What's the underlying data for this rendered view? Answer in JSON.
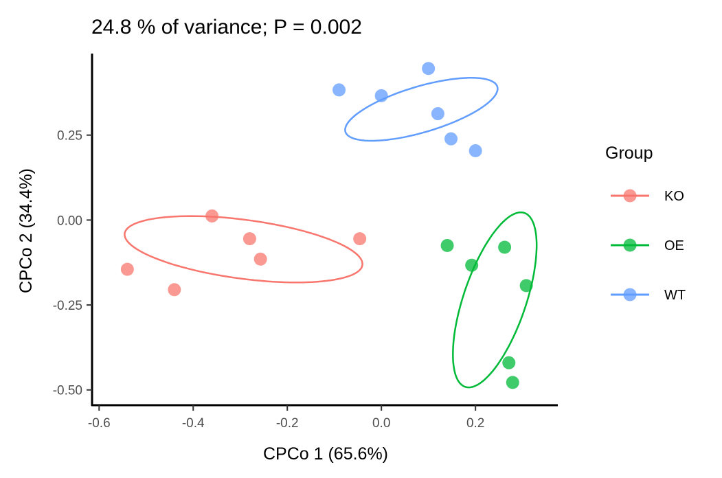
{
  "chart_data": {
    "type": "scatter",
    "title": "24.8 % of variance; P = 0.002",
    "xlabel": "CPCo 1 (65.6%)",
    "ylabel": "CPCo 2 (34.4%)",
    "xlim": [
      -0.615,
      0.375
    ],
    "ylim": [
      -0.545,
      0.49
    ],
    "x_ticks": [
      {
        "value": -0.6,
        "label": "-0.6"
      },
      {
        "value": -0.4,
        "label": "-0.4"
      },
      {
        "value": -0.2,
        "label": "-0.2"
      },
      {
        "value": 0.0,
        "label": "0.0"
      },
      {
        "value": 0.2,
        "label": "0.2"
      }
    ],
    "y_ticks": [
      {
        "value": 0.25,
        "label": "0.25"
      },
      {
        "value": 0.0,
        "label": "0.00"
      },
      {
        "value": -0.25,
        "label": "-0.25"
      },
      {
        "value": -0.5,
        "label": "-0.50"
      }
    ],
    "grid": false,
    "legend": {
      "title": "Group",
      "position": "right"
    },
    "series": [
      {
        "name": "KO",
        "color": "#F8766D",
        "points": [
          {
            "x": -0.54,
            "y": -0.145
          },
          {
            "x": -0.44,
            "y": -0.205
          },
          {
            "x": -0.36,
            "y": 0.012
          },
          {
            "x": -0.28,
            "y": -0.055
          },
          {
            "x": -0.257,
            "y": -0.115
          },
          {
            "x": -0.046,
            "y": -0.055
          }
        ],
        "ellipse": {
          "cx": -0.293,
          "cy": -0.086,
          "rx": 0.257,
          "ry": 0.086,
          "angle_deg": -11
        }
      },
      {
        "name": "OE",
        "color": "#00BA38",
        "points": [
          {
            "x": 0.14,
            "y": -0.075
          },
          {
            "x": 0.192,
            "y": -0.133
          },
          {
            "x": 0.262,
            "y": -0.08
          },
          {
            "x": 0.308,
            "y": -0.193
          },
          {
            "x": 0.271,
            "y": -0.42
          },
          {
            "x": 0.279,
            "y": -0.478
          }
        ],
        "ellipse": {
          "cx": 0.241,
          "cy": -0.235,
          "rx": 0.068,
          "ry": 0.264,
          "angle_deg": -13
        }
      },
      {
        "name": "WT",
        "color": "#619CFF",
        "points": [
          {
            "x": -0.09,
            "y": 0.383
          },
          {
            "x": 0.0,
            "y": 0.366
          },
          {
            "x": 0.1,
            "y": 0.446
          },
          {
            "x": 0.12,
            "y": 0.313
          },
          {
            "x": 0.148,
            "y": 0.239
          },
          {
            "x": 0.2,
            "y": 0.204
          }
        ],
        "ellipse": {
          "cx": 0.085,
          "cy": 0.326,
          "rx": 0.175,
          "ry": 0.065,
          "angle_deg": 24
        }
      }
    ]
  }
}
